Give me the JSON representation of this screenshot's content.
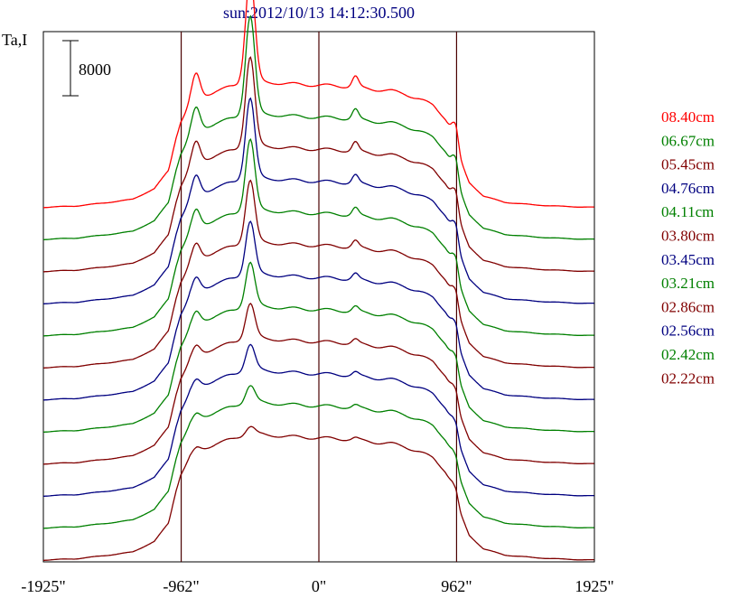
{
  "chart_data": {
    "type": "line",
    "title": "sun:2012/10/13 14:12:30.500",
    "ylabel": "Ta,I",
    "scale_bar_label": "8000",
    "x_tick_labels": [
      "-1925\"",
      "-962\"",
      "0\"",
      "962\"",
      "1925\""
    ],
    "x_ticks": [
      -1925,
      -962,
      0,
      962,
      1925
    ],
    "xlim": [
      -1925,
      1925
    ],
    "vertical_lines": [
      -962,
      0,
      962
    ],
    "grid": false,
    "legend_position": "right",
    "series": [
      {
        "name": "08.40cm",
        "color": "#ff0000"
      },
      {
        "name": "06.67cm",
        "color": "#008000"
      },
      {
        "name": "05.45cm",
        "color": "#800000"
      },
      {
        "name": "04.76cm",
        "color": "#000080"
      },
      {
        "name": "04.11cm",
        "color": "#008000"
      },
      {
        "name": "03.80cm",
        "color": "#800000"
      },
      {
        "name": "03.45cm",
        "color": "#000080"
      },
      {
        "name": "03.21cm",
        "color": "#008000"
      },
      {
        "name": "02.86cm",
        "color": "#800000"
      },
      {
        "name": "02.56cm",
        "color": "#000080"
      },
      {
        "name": "02.42cm",
        "color": "#008000"
      },
      {
        "name": "02.22cm",
        "color": "#800000"
      }
    ],
    "profile": {
      "x": [
        -1925,
        -1700,
        -1500,
        -1300,
        -1150,
        -1050,
        -1000,
        -962,
        -900,
        -850,
        -800,
        -720,
        -650,
        -600,
        -560,
        -520,
        -480,
        -450,
        -420,
        -400,
        -350,
        -300,
        -250,
        -200,
        -100,
        0,
        100,
        200,
        250,
        280,
        320,
        400,
        500,
        600,
        700,
        800,
        880,
        930,
        962,
        990,
        1050,
        1150,
        1300,
        1500,
        1700,
        1925
      ],
      "y": [
        0,
        200,
        700,
        1300,
        3000,
        6000,
        11000,
        14000,
        16500,
        17500,
        18000,
        18800,
        19200,
        19500,
        19800,
        20000,
        20100,
        20200,
        20200,
        20200,
        20100,
        20100,
        20000,
        19900,
        19800,
        19700,
        19600,
        19500,
        19400,
        19300,
        19200,
        19000,
        18800,
        18300,
        17500,
        16400,
        14500,
        12500,
        10500,
        7500,
        4000,
        1800,
        800,
        400,
        150,
        0
      ]
    }
  }
}
